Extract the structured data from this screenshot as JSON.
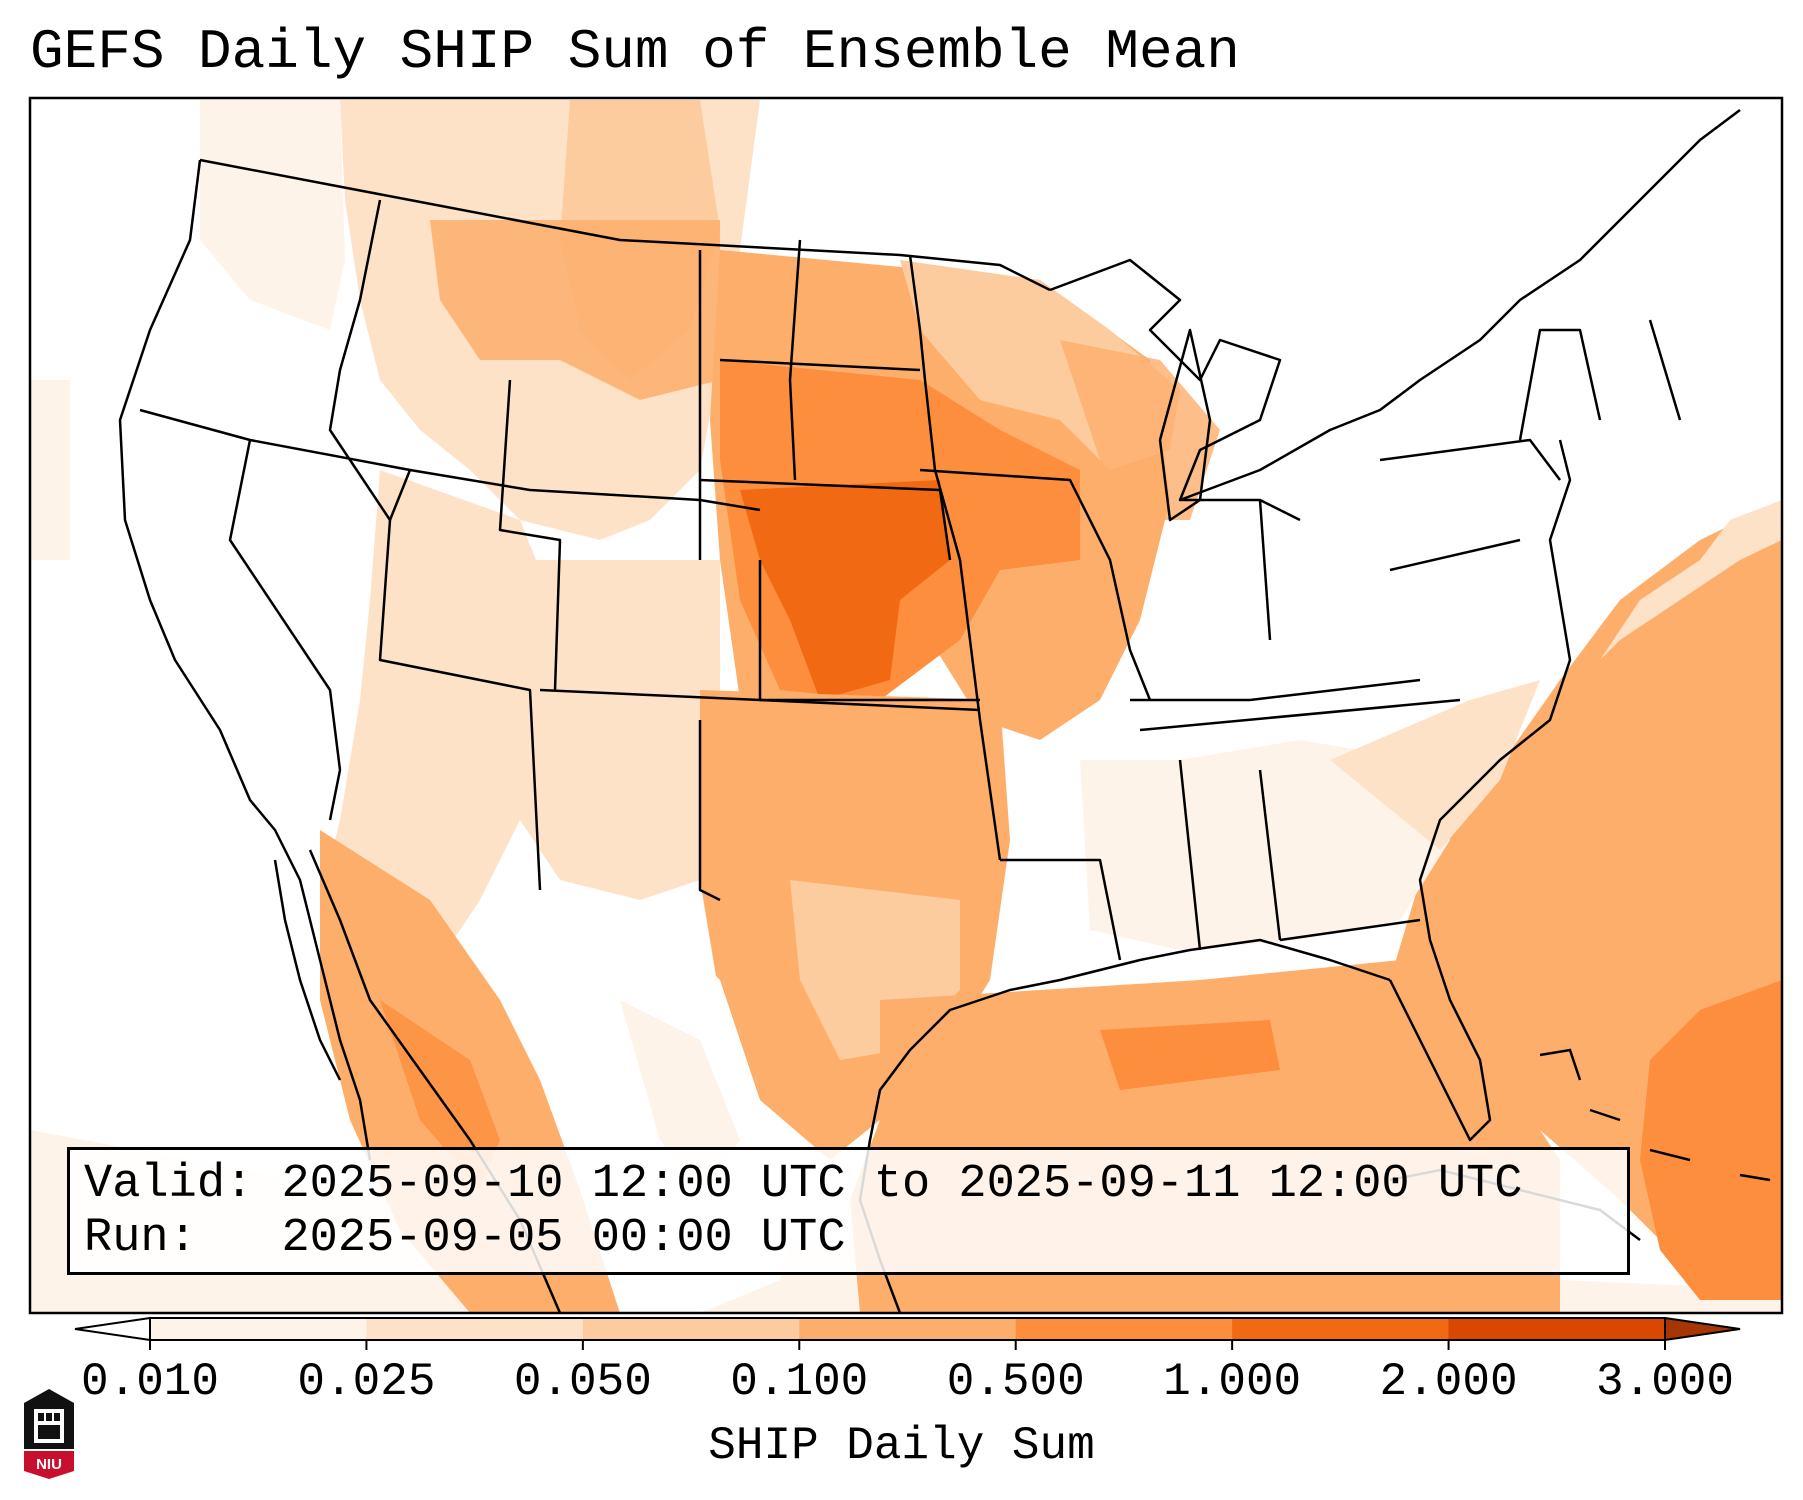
{
  "title": "GEFS Daily SHIP Sum of Ensemble Mean",
  "info": {
    "valid_label": "Valid:",
    "valid_value": "2025-09-10 12:00 UTC to 2025-09-11 12:00 UTC",
    "run_label": "Run:",
    "run_value": "2025-09-05 00:00 UTC"
  },
  "colorbar": {
    "title": "SHIP Daily Sum",
    "ticks": [
      "0.010",
      "0.025",
      "0.050",
      "0.100",
      "0.500",
      "1.000",
      "2.000",
      "3.000"
    ],
    "colors": [
      "#fef3e8",
      "#fde2c8",
      "#fdcc9e",
      "#fdae6b",
      "#fc8e3e",
      "#f16913",
      "#d94801"
    ],
    "extend": "both"
  },
  "logo": {
    "text": "NIU"
  },
  "colors": {
    "border": "#000000",
    "water_overlay": "#ffffff"
  }
}
